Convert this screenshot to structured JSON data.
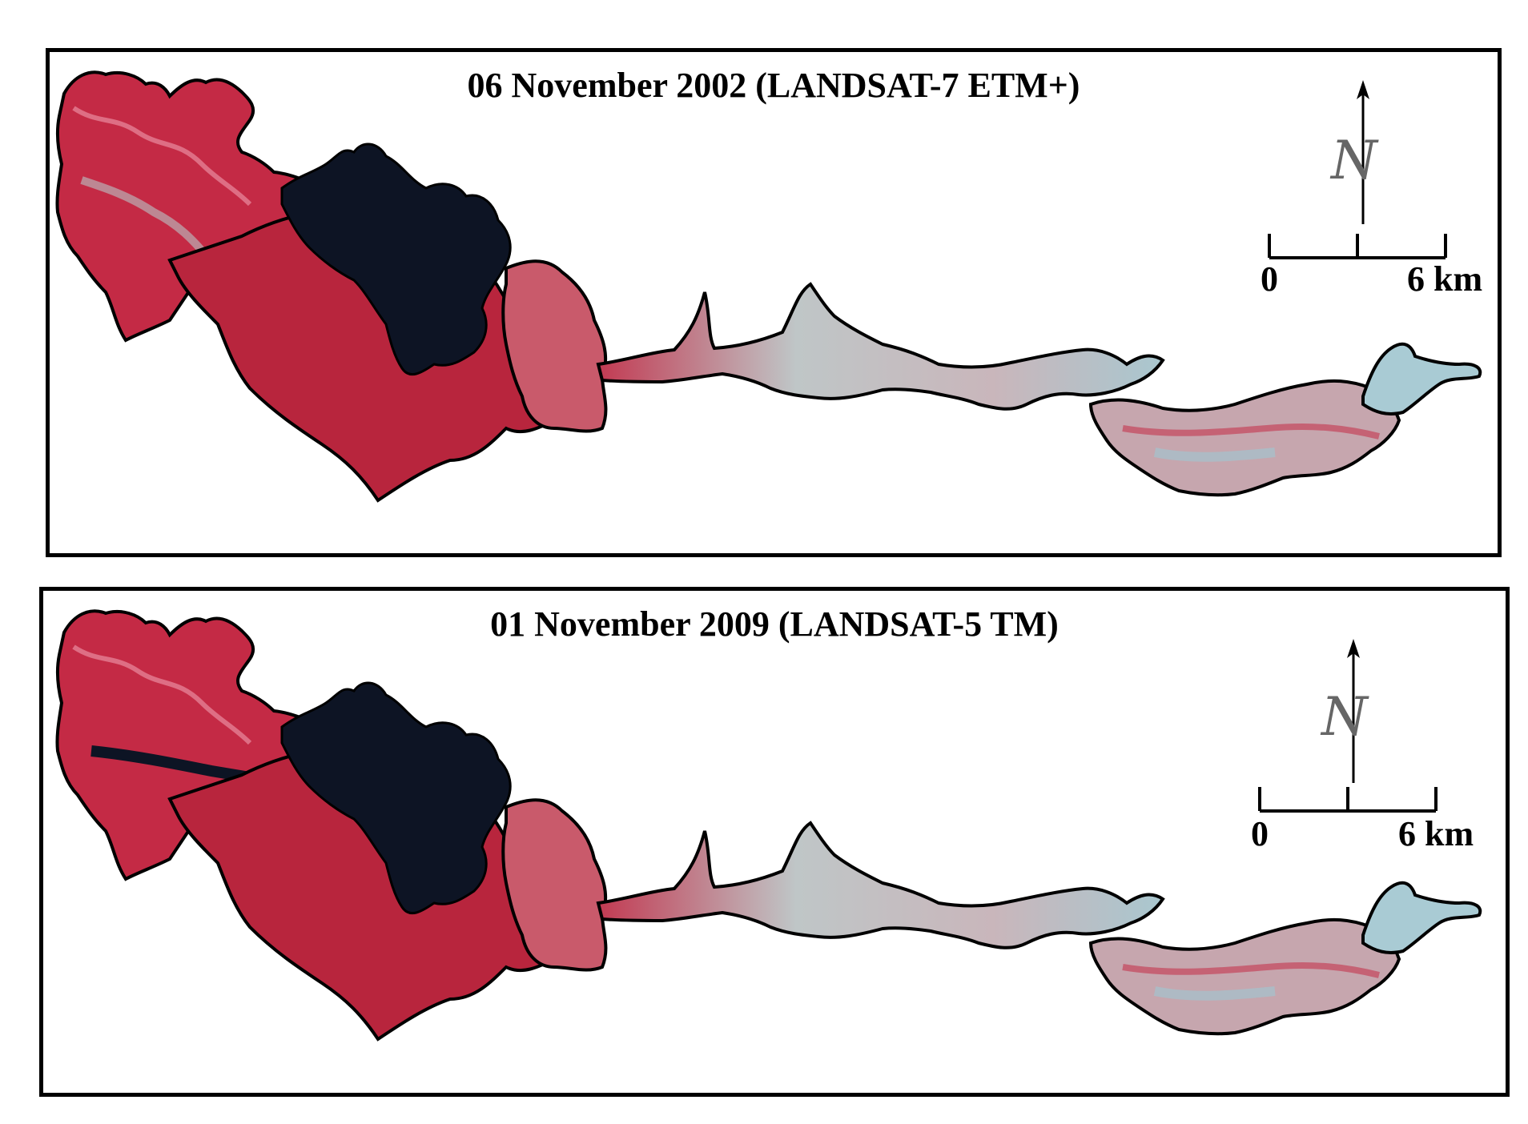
{
  "panels": [
    {
      "title": "06 November 2002 (LANDSAT-7 ETM+)",
      "north_label": "N",
      "scale_start": "0",
      "scale_end": "6 km"
    },
    {
      "title": "01 November 2009 (LANDSAT-5 TM)",
      "north_label": "N",
      "scale_start": "0",
      "scale_end": "6 km"
    }
  ],
  "colors": {
    "vegetation_red": "#c42a45",
    "vegetation_dark": "#8e1d32",
    "bare_land": "#b9c6c8",
    "water": "#0d1424",
    "outline": "#000000"
  }
}
